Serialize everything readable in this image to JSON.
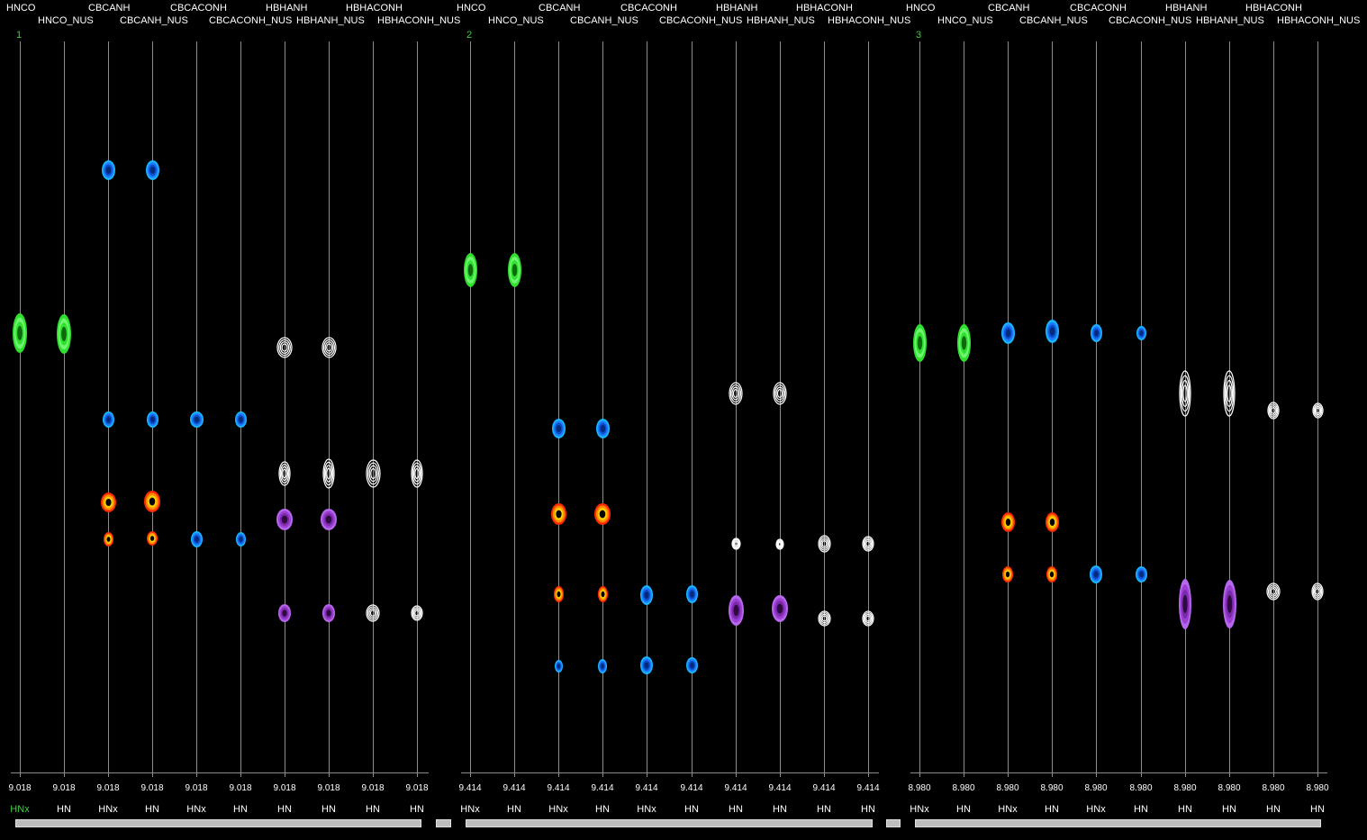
{
  "colors": {
    "background": "#000000",
    "gridline": "#8c8c8c",
    "hnco": "#2fe02f",
    "cbca": "#1e7bff",
    "cbca_pos": "#ff8a00",
    "hbha": "#ffffff",
    "hbha_neg": "#9b3fd0"
  },
  "panels": [
    {
      "index": "1",
      "shift": "9.018",
      "strips": [
        {
          "experiment": "HNCO",
          "axis_label": "HNx"
        },
        {
          "experiment": "HNCO_NUS",
          "axis_label": "HN"
        },
        {
          "experiment": "CBCANH",
          "axis_label": "HNx"
        },
        {
          "experiment": "CBCANH_NUS",
          "axis_label": "HN"
        },
        {
          "experiment": "CBCACONH",
          "axis_label": "HNx"
        },
        {
          "experiment": "CBCACONH_NUS",
          "axis_label": "HN"
        },
        {
          "experiment": "HBHANH",
          "axis_label": "HN"
        },
        {
          "experiment": "HBHANH_NUS",
          "axis_label": "HN"
        },
        {
          "experiment": "HBHACONH",
          "axis_label": "HN"
        },
        {
          "experiment": "HBHACONH_NUS",
          "axis_label": "HN"
        }
      ]
    },
    {
      "index": "2",
      "shift": "9.414",
      "strips": [
        {
          "experiment": "HNCO",
          "axis_label": "HNx"
        },
        {
          "experiment": "HNCO_NUS",
          "axis_label": "HN"
        },
        {
          "experiment": "CBCANH",
          "axis_label": "HNx"
        },
        {
          "experiment": "CBCANH_NUS",
          "axis_label": "HN"
        },
        {
          "experiment": "CBCACONH",
          "axis_label": "HNx"
        },
        {
          "experiment": "CBCACONH_NUS",
          "axis_label": "HN"
        },
        {
          "experiment": "HBHANH",
          "axis_label": "HN"
        },
        {
          "experiment": "HBHANH_NUS",
          "axis_label": "HN"
        },
        {
          "experiment": "HBHACONH",
          "axis_label": "HN"
        },
        {
          "experiment": "HBHACONH_NUS",
          "axis_label": "HN"
        }
      ]
    },
    {
      "index": "3",
      "shift": "8.980",
      "strips": [
        {
          "experiment": "HNCO",
          "axis_label": "HNx"
        },
        {
          "experiment": "HNCO_NUS",
          "axis_label": "HN"
        },
        {
          "experiment": "CBCANH",
          "axis_label": "HNx"
        },
        {
          "experiment": "CBCANH_NUS",
          "axis_label": "HN"
        },
        {
          "experiment": "CBCACONH",
          "axis_label": "HNx"
        },
        {
          "experiment": "CBCACONH_NUS",
          "axis_label": "HN"
        },
        {
          "experiment": "HBHANH",
          "axis_label": "HN"
        },
        {
          "experiment": "HBHANH_NUS",
          "axis_label": "HN"
        },
        {
          "experiment": "HBHACONH",
          "axis_label": "HN"
        },
        {
          "experiment": "HBHACONH_NUS",
          "axis_label": "HN"
        }
      ]
    }
  ]
}
